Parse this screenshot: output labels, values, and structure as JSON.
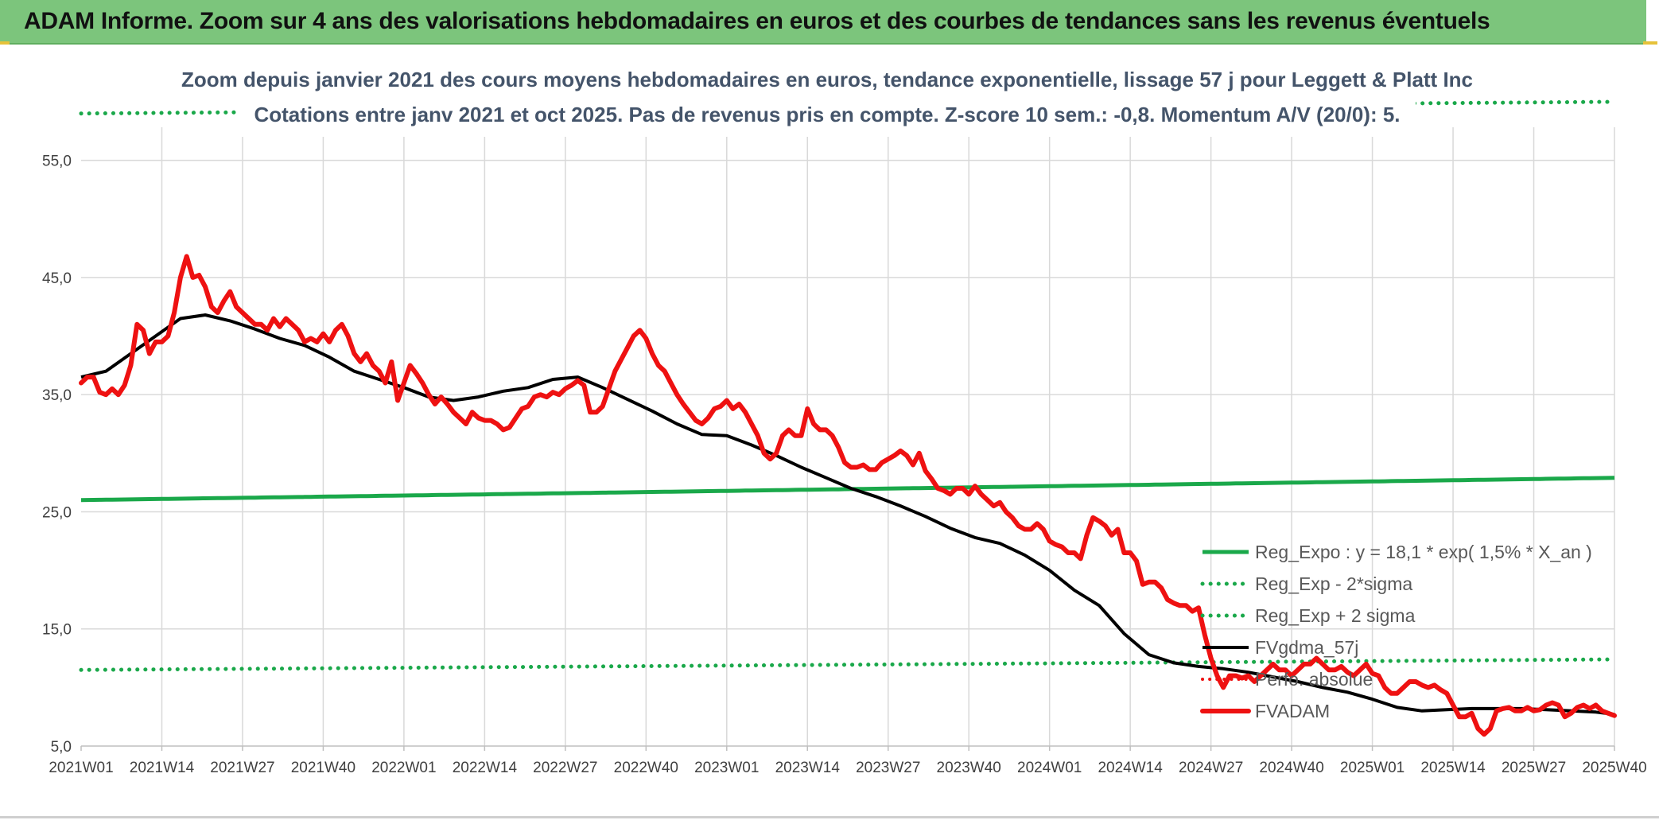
{
  "header": {
    "title": "ADAM Informe. Zoom sur 4 ans des valorisations hebdomadaires en euros et des courbes de tendances sans les revenus éventuels"
  },
  "chart_data": {
    "type": "line",
    "title": "Zoom depuis janvier 2021 des cours moyens hebdomadaires en euros, tendance exponentielle, lissage 57 j pour Leggett & Platt Inc",
    "subtitle": "Cotations entre janv 2021 et oct 2025. Pas de revenus pris en compte. Z-score 10 sem.: -0,8. Momentum A/V (20/0): 5.",
    "ylim": [
      5,
      60
    ],
    "yticks": [
      5,
      15,
      25,
      35,
      45,
      55
    ],
    "ytick_labels": [
      "5,0",
      "15,0",
      "25,0",
      "35,0",
      "45,0",
      "55,0"
    ],
    "xticks": [
      0,
      13,
      26,
      39,
      52,
      65,
      78,
      91,
      104,
      117,
      130,
      143,
      156,
      169,
      182,
      195,
      208,
      221,
      234,
      247
    ],
    "xtick_labels": [
      "2021W01",
      "2021W14",
      "2021W27",
      "2021W40",
      "2022W01",
      "2022W14",
      "2022W27",
      "2022W40",
      "2023W01",
      "2023W14",
      "2023W27",
      "2023W40",
      "2024W01",
      "2024W14",
      "2024W27",
      "2024W40",
      "2025W01",
      "2025W14",
      "2025W27",
      "2025W40"
    ],
    "legend_position": "bottom-right",
    "colors": {
      "green": "#1aa84a",
      "black": "#000000",
      "red": "#ee1111"
    },
    "series": [
      {
        "name": "Reg_Expo : y = 18,1 * exp( 1,5% *  X_an )",
        "style": "solid-green",
        "x": [
          0,
          247
        ],
        "values": [
          26.0,
          27.9
        ]
      },
      {
        "name": "Reg_Exp - 2*sigma",
        "style": "dotted-green",
        "x": [
          0,
          247
        ],
        "values": [
          11.5,
          12.4
        ]
      },
      {
        "name": "Reg_Exp + 2 sigma",
        "style": "dotted-green",
        "x": [
          0,
          247
        ],
        "values": [
          59.0,
          60.0
        ]
      },
      {
        "name": "FVgdma_57j",
        "style": "solid-black",
        "x": [
          0,
          4,
          8,
          12,
          16,
          20,
          24,
          28,
          32,
          36,
          40,
          44,
          48,
          52,
          56,
          60,
          64,
          68,
          72,
          76,
          80,
          84,
          88,
          92,
          96,
          100,
          104,
          108,
          112,
          116,
          120,
          124,
          128,
          132,
          136,
          140,
          144,
          148,
          152,
          156,
          160,
          164,
          168,
          172,
          176,
          180,
          184,
          188,
          192,
          196,
          200,
          204,
          208,
          212,
          216,
          220,
          224,
          228,
          232,
          236,
          240,
          244,
          247
        ],
        "values": [
          36.5,
          37.0,
          38.5,
          40.0,
          41.5,
          41.8,
          41.3,
          40.6,
          39.8,
          39.2,
          38.2,
          37.0,
          36.3,
          35.6,
          34.8,
          34.5,
          34.8,
          35.3,
          35.6,
          36.3,
          36.5,
          35.6,
          34.6,
          33.6,
          32.5,
          31.6,
          31.5,
          30.7,
          29.8,
          28.8,
          27.9,
          27.0,
          26.3,
          25.5,
          24.6,
          23.6,
          22.8,
          22.3,
          21.3,
          20.0,
          18.3,
          17.0,
          14.6,
          12.8,
          12.1,
          11.8,
          11.6,
          11.3,
          10.9,
          10.5,
          10.0,
          9.6,
          9.0,
          8.3,
          8.0,
          8.1,
          8.2,
          8.2,
          8.2,
          8.1,
          8.0,
          7.9,
          7.7
        ]
      },
      {
        "name": "Perfo. absolue",
        "style": "dotted-red",
        "x": [],
        "values": []
      },
      {
        "name": "FVADAM",
        "style": "solid-red",
        "x": [
          0,
          1,
          2,
          3,
          4,
          5,
          6,
          7,
          8,
          9,
          10,
          11,
          12,
          13,
          14,
          15,
          16,
          17,
          18,
          19,
          20,
          21,
          22,
          23,
          24,
          25,
          26,
          27,
          28,
          29,
          30,
          31,
          32,
          33,
          34,
          35,
          36,
          37,
          38,
          39,
          40,
          41,
          42,
          43,
          44,
          45,
          46,
          47,
          48,
          49,
          50,
          51,
          52,
          53,
          54,
          55,
          56,
          57,
          58,
          59,
          60,
          61,
          62,
          63,
          64,
          65,
          66,
          67,
          68,
          69,
          70,
          71,
          72,
          73,
          74,
          75,
          76,
          77,
          78,
          79,
          80,
          81,
          82,
          83,
          84,
          85,
          86,
          87,
          88,
          89,
          90,
          91,
          92,
          93,
          94,
          95,
          96,
          97,
          98,
          99,
          100,
          101,
          102,
          103,
          104,
          105,
          106,
          107,
          108,
          109,
          110,
          111,
          112,
          113,
          114,
          115,
          116,
          117,
          118,
          119,
          120,
          121,
          122,
          123,
          124,
          125,
          126,
          127,
          128,
          129,
          130,
          131,
          132,
          133,
          134,
          135,
          136,
          137,
          138,
          139,
          140,
          141,
          142,
          143,
          144,
          145,
          146,
          147,
          148,
          149,
          150,
          151,
          152,
          153,
          154,
          155,
          156,
          157,
          158,
          159,
          160,
          161,
          162,
          163,
          164,
          165,
          166,
          167,
          168,
          169,
          170,
          171,
          172,
          173,
          174,
          175,
          176,
          177,
          178,
          179,
          180,
          181,
          182,
          183,
          184,
          185,
          186,
          187,
          188,
          189,
          190,
          191,
          192,
          193,
          194,
          195,
          196,
          197,
          198,
          199,
          200,
          201,
          202,
          203,
          204,
          205,
          206,
          207,
          208,
          209,
          210,
          211,
          212,
          213,
          214,
          215,
          216,
          217,
          218,
          219,
          220,
          221,
          222,
          223,
          224,
          225,
          226,
          227,
          228,
          229,
          230,
          231,
          232,
          233,
          234,
          235,
          236,
          237,
          238,
          239,
          240,
          241,
          242,
          243,
          244,
          245,
          246,
          247
        ],
        "values": [
          36.0,
          36.5,
          36.5,
          35.2,
          35.0,
          35.5,
          35.0,
          35.8,
          37.5,
          41.0,
          40.5,
          38.5,
          39.5,
          39.5,
          40.0,
          42.0,
          45.0,
          46.8,
          45.0,
          45.2,
          44.2,
          42.5,
          42.0,
          43.0,
          43.8,
          42.5,
          42.0,
          41.5,
          41.0,
          41.0,
          40.5,
          41.5,
          40.8,
          41.5,
          41.0,
          40.5,
          39.5,
          39.8,
          39.5,
          40.2,
          39.5,
          40.5,
          41.0,
          40.0,
          38.5,
          37.8,
          38.5,
          37.5,
          37.0,
          36.0,
          37.8,
          34.5,
          36.0,
          37.5,
          36.8,
          36.0,
          35.0,
          34.2,
          34.8,
          34.2,
          33.5,
          33.0,
          32.5,
          33.5,
          33.0,
          32.8,
          32.8,
          32.5,
          32.0,
          32.2,
          33.0,
          33.8,
          34.0,
          34.8,
          35.0,
          34.8,
          35.2,
          35.0,
          35.5,
          35.8,
          36.2,
          35.8,
          33.5,
          33.5,
          34.0,
          35.5,
          37.0,
          38.0,
          39.0,
          40.0,
          40.5,
          39.8,
          38.5,
          37.5,
          37.0,
          36.0,
          35.0,
          34.2,
          33.5,
          32.8,
          32.5,
          33.0,
          33.8,
          34.0,
          34.5,
          33.8,
          34.2,
          33.5,
          32.5,
          31.5,
          30.0,
          29.5,
          30.0,
          31.5,
          32.0,
          31.5,
          31.5,
          33.8,
          32.5,
          32.0,
          32.0,
          31.5,
          30.5,
          29.2,
          28.8,
          28.8,
          29.0,
          28.6,
          28.6,
          29.2,
          29.5,
          29.8,
          30.2,
          29.8,
          29.0,
          30.0,
          28.5,
          27.8,
          27.0,
          26.8,
          26.5,
          27.0,
          27.0,
          26.5,
          27.2,
          26.5,
          26.0,
          25.5,
          25.8,
          25.0,
          24.5,
          23.8,
          23.5,
          23.5,
          24.0,
          23.5,
          22.5,
          22.2,
          22.0,
          21.5,
          21.5,
          21.0,
          23.0,
          24.5,
          24.2,
          23.8,
          23.0,
          23.5,
          21.5,
          21.5,
          20.8,
          18.8,
          19.0,
          19.0,
          18.5,
          17.5,
          17.2,
          17.0,
          17.0,
          16.5,
          16.8,
          14.5,
          12.5,
          11.0,
          10.0,
          11.0,
          11.0,
          10.8,
          11.0,
          10.5,
          11.0,
          11.5,
          12.0,
          11.5,
          11.5,
          11.0,
          11.5,
          12.0,
          12.0,
          12.5,
          12.0,
          11.5,
          11.5,
          11.8,
          11.3,
          11.0,
          11.5,
          12.0,
          11.2,
          11.0,
          10.0,
          9.5,
          9.5,
          10.0,
          10.5,
          10.5,
          10.2,
          10.0,
          10.2,
          9.8,
          9.5,
          8.5,
          7.5,
          7.5,
          7.8,
          6.5,
          6.0,
          6.5,
          8.0,
          8.2,
          8.3,
          8.0,
          8.0,
          8.3,
          8.0,
          8.1,
          8.5,
          8.7,
          8.5,
          7.5,
          7.8,
          8.3,
          8.5,
          8.2,
          8.5,
          8.0,
          7.8,
          7.6
        ]
      }
    ]
  }
}
